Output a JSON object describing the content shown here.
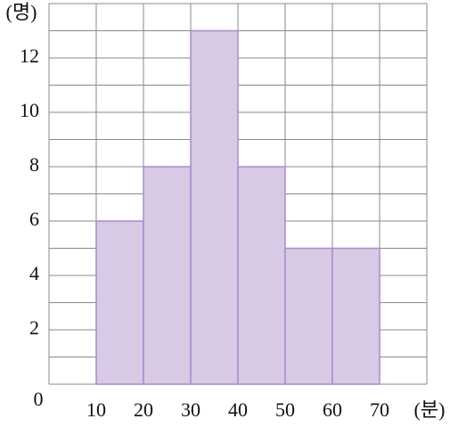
{
  "chart_data": {
    "type": "histogram",
    "y_label": "(명)",
    "x_label": "(분)",
    "bins": [
      10,
      20,
      30,
      40,
      50,
      60,
      70
    ],
    "values": [
      6,
      8,
      13,
      8,
      5,
      5
    ],
    "color": "#d8c9e4",
    "edge_color": "#a98bc9",
    "xlim": [
      0,
      80
    ],
    "xticks": [
      10,
      20,
      30,
      40,
      50,
      60,
      70
    ],
    "ylim": [
      0,
      14
    ],
    "yticks": [
      0,
      2,
      4,
      6,
      8,
      10,
      12
    ],
    "ygrid": [
      0,
      1,
      2,
      3,
      4,
      5,
      6,
      7,
      8,
      9,
      10,
      11,
      12,
      13,
      14
    ],
    "xgrid": [
      0,
      10,
      20,
      30,
      40,
      50,
      60,
      70,
      80
    ],
    "grid": true
  }
}
